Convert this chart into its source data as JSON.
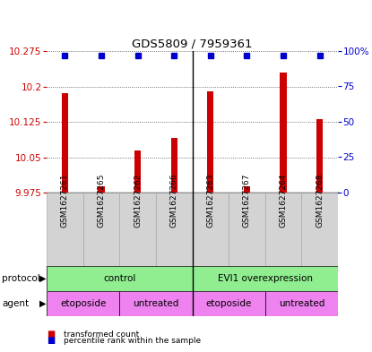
{
  "title": "GDS5809 / 7959361",
  "samples": [
    "GSM1627261",
    "GSM1627265",
    "GSM1627262",
    "GSM1627266",
    "GSM1627263",
    "GSM1627267",
    "GSM1627264",
    "GSM1627268"
  ],
  "transformed_counts": [
    10.185,
    9.988,
    10.065,
    10.09,
    10.19,
    9.988,
    10.23,
    10.13
  ],
  "percentile_ranks": [
    97,
    97,
    97,
    97,
    97,
    97,
    97,
    97
  ],
  "ymin": 9.975,
  "ymax": 10.275,
  "yticks": [
    9.975,
    10.05,
    10.125,
    10.2,
    10.275
  ],
  "ytick_labels": [
    "9.975",
    "10.05",
    "10.125",
    "10.2",
    "10.275"
  ],
  "y2min": 0,
  "y2max": 100,
  "y2ticks": [
    0,
    25,
    50,
    75,
    100
  ],
  "y2tick_labels": [
    "0",
    "25",
    "50",
    "75",
    "100%"
  ],
  "bar_color": "#cc0000",
  "dot_color": "#0000cc",
  "bar_baseline": 9.975,
  "bar_width": 0.18,
  "protocol_label": "protocol",
  "agent_label": "agent",
  "legend_items": [
    {
      "label": "transformed count",
      "color": "#cc0000"
    },
    {
      "label": "percentile rank within the sample",
      "color": "#0000cc"
    }
  ],
  "sample_box_color": "#d3d3d3",
  "sample_box_edge_color": "#aaaaaa",
  "protocol_color": "#90ee90",
  "agent_color_etoposide": "#ee82ee",
  "agent_color_untreated": "#ee82ee",
  "separator_color": "#000000"
}
